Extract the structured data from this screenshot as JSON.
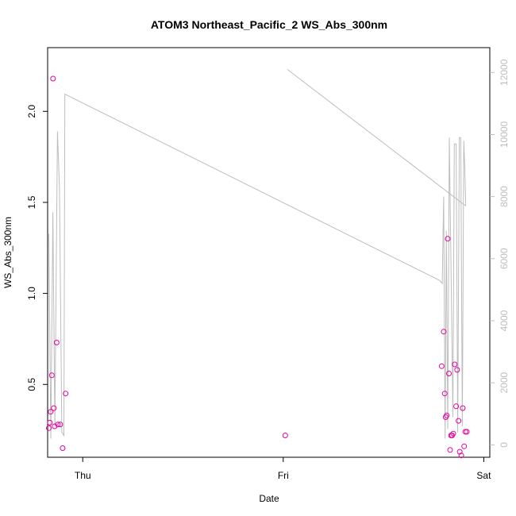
{
  "chart_data": {
    "type": "scatter",
    "title": "ATOM3 Northeast_Pacific_2 WS_Abs_300nm",
    "xlabel": "Date",
    "ylabel": "WS_Abs_300nm",
    "x_axis": {
      "type": "datetime",
      "unit": "days",
      "range_days": [
        -0.175,
        2.03
      ],
      "ticks": [
        {
          "label": "Thu",
          "value": 0.0
        },
        {
          "label": "Fri",
          "value": 1.0
        },
        {
          "label": "Sat",
          "value": 2.0
        }
      ]
    },
    "y_axis_left": {
      "range": [
        0.1,
        2.35
      ],
      "ticks": [
        0.5,
        1.0,
        1.5,
        2.0
      ],
      "tick_labels": [
        "0.5",
        "1.0",
        "1.5",
        "2.0"
      ]
    },
    "y_axis_right": {
      "range": [
        -400,
        12800
      ],
      "ticks": [
        0,
        2000,
        4000,
        6000,
        8000,
        10000,
        12000
      ],
      "tick_labels": [
        "0",
        "2000",
        "4000",
        "6000",
        "8000",
        "10000",
        "12000"
      ],
      "color": "#bdbdbd"
    },
    "series": [
      {
        "color": "#e6009e",
        "marker": "circle-open",
        "axis": "left",
        "points": [
          {
            "x": -0.169,
            "y": 0.26
          },
          {
            "x": -0.164,
            "y": 0.29
          },
          {
            "x": -0.16,
            "y": 0.35
          },
          {
            "x": -0.154,
            "y": 0.55
          },
          {
            "x": -0.148,
            "y": 2.18
          },
          {
            "x": -0.144,
            "y": 0.37
          },
          {
            "x": -0.14,
            "y": 0.27
          },
          {
            "x": -0.13,
            "y": 0.73
          },
          {
            "x": -0.124,
            "y": 0.28
          },
          {
            "x": -0.112,
            "y": 0.28
          },
          {
            "x": -0.1,
            "y": 0.15
          },
          {
            "x": -0.085,
            "y": 0.45
          },
          {
            "x": 1.01,
            "y": 0.22
          },
          {
            "x": 1.79,
            "y": 0.6
          },
          {
            "x": 1.8,
            "y": 0.79
          },
          {
            "x": 1.805,
            "y": 0.45
          },
          {
            "x": 1.81,
            "y": 0.32
          },
          {
            "x": 1.815,
            "y": 0.33
          },
          {
            "x": 1.82,
            "y": 1.3
          },
          {
            "x": 1.826,
            "y": 0.56
          },
          {
            "x": 1.832,
            "y": 0.14
          },
          {
            "x": 1.837,
            "y": 0.22
          },
          {
            "x": 1.842,
            "y": 0.22
          },
          {
            "x": 1.848,
            "y": 0.23
          },
          {
            "x": 1.855,
            "y": 0.61
          },
          {
            "x": 1.862,
            "y": 0.38
          },
          {
            "x": 1.867,
            "y": 0.58
          },
          {
            "x": 1.874,
            "y": 0.3
          },
          {
            "x": 1.88,
            "y": 0.13
          },
          {
            "x": 1.888,
            "y": 0.11
          },
          {
            "x": 1.895,
            "y": 0.37
          },
          {
            "x": 1.902,
            "y": 0.16
          },
          {
            "x": 1.908,
            "y": 0.24
          },
          {
            "x": 1.915,
            "y": 0.24
          }
        ]
      },
      {
        "color": "#bdbdbd",
        "marker": "line",
        "axis": "right",
        "points": [
          {
            "x": -0.169,
            "y": 6800
          },
          {
            "x": -0.159,
            "y": 200
          },
          {
            "x": -0.149,
            "y": 7500
          },
          {
            "x": -0.139,
            "y": 600
          },
          {
            "x": -0.126,
            "y": 10100
          },
          {
            "x": -0.116,
            "y": 8300
          },
          {
            "x": -0.104,
            "y": 400
          },
          {
            "x": -0.094,
            "y": 300
          },
          {
            "x": -0.089,
            "y": 11300
          },
          {
            "x": 1.78,
            "y": 5300
          },
          {
            "x": 1.793,
            "y": 5200
          },
          {
            "x": 1.8,
            "y": 8000
          },
          {
            "x": 1.807,
            "y": 200
          },
          {
            "x": 1.813,
            "y": 6900
          },
          {
            "x": 1.82,
            "y": 500
          },
          {
            "x": 1.828,
            "y": 9900
          },
          {
            "x": 1.838,
            "y": 5000
          },
          {
            "x": 1.846,
            "y": 900
          },
          {
            "x": 1.853,
            "y": 9700
          },
          {
            "x": 1.862,
            "y": 9700
          },
          {
            "x": 1.87,
            "y": 400
          },
          {
            "x": 1.878,
            "y": 9900
          },
          {
            "x": 1.885,
            "y": 9900
          },
          {
            "x": 1.893,
            "y": 600
          },
          {
            "x": 1.9,
            "y": 9800
          },
          {
            "x": 1.905,
            "y": 9000
          },
          {
            "x": 1.91,
            "y": 7700
          }
        ]
      },
      {
        "color": "#bdbdbd",
        "marker": "line",
        "axis": "right",
        "points": [
          {
            "x": 1.02,
            "y": 12100
          },
          {
            "x": 1.91,
            "y": 7700
          }
        ]
      }
    ],
    "grid": false,
    "legend": "none"
  }
}
